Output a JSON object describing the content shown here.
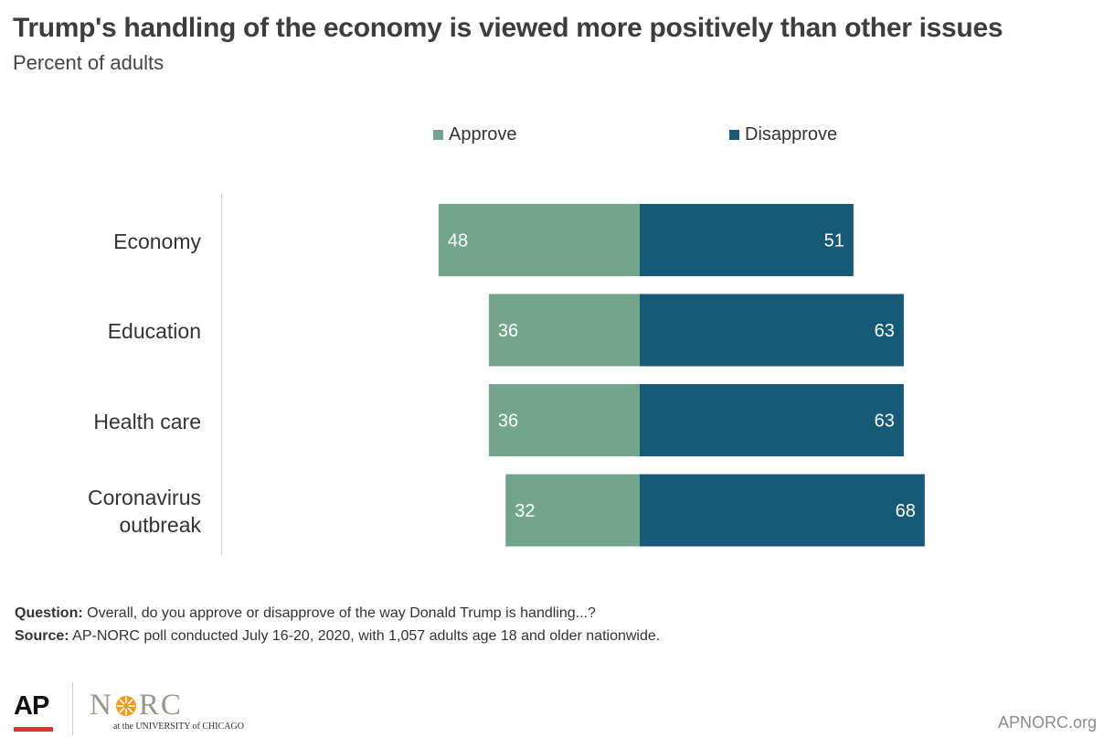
{
  "header": {
    "title": "Trump's handling of the economy is viewed more positively than other issues",
    "subtitle": "Percent of adults"
  },
  "chart_data": {
    "type": "bar",
    "orientation": "horizontal-diverging",
    "title": "Trump's handling of the economy is viewed more positively than other issues",
    "subtitle": "Percent of adults",
    "categories": [
      "Economy",
      "Education",
      "Health care",
      "Coronavirus outbreak"
    ],
    "category_lines": [
      [
        "Economy"
      ],
      [
        "Education"
      ],
      [
        "Health care"
      ],
      [
        "Coronavirus",
        "outbreak"
      ]
    ],
    "series": [
      {
        "name": "Approve",
        "values": [
          48,
          36,
          36,
          32
        ],
        "color": "#72a58c"
      },
      {
        "name": "Disapprove",
        "values": [
          51,
          63,
          63,
          68
        ],
        "color": "#175a78"
      }
    ],
    "xlim": [
      -100,
      100
    ],
    "grid": false,
    "legend": "top",
    "data_labels": true
  },
  "footer": {
    "question_label": "Question:",
    "question_text": " Overall, do you approve or disapprove of the way Donald Trump is handling...?",
    "source_label": "Source:",
    "source_text": " AP-NORC poll conducted July 16-20, 2020, with 1,057 adults age 18 and older nationwide.",
    "ap_logo_text": "AP",
    "norc_logo_text": "NORC",
    "norc_subtitle": "at the UNIVERSITY of CHICAGO",
    "website": "APNORC.org"
  },
  "colors": {
    "approve": "#72a58c",
    "disapprove": "#175a78",
    "ap_red": "#e0332f",
    "norc_orange": "#f29a1d"
  }
}
